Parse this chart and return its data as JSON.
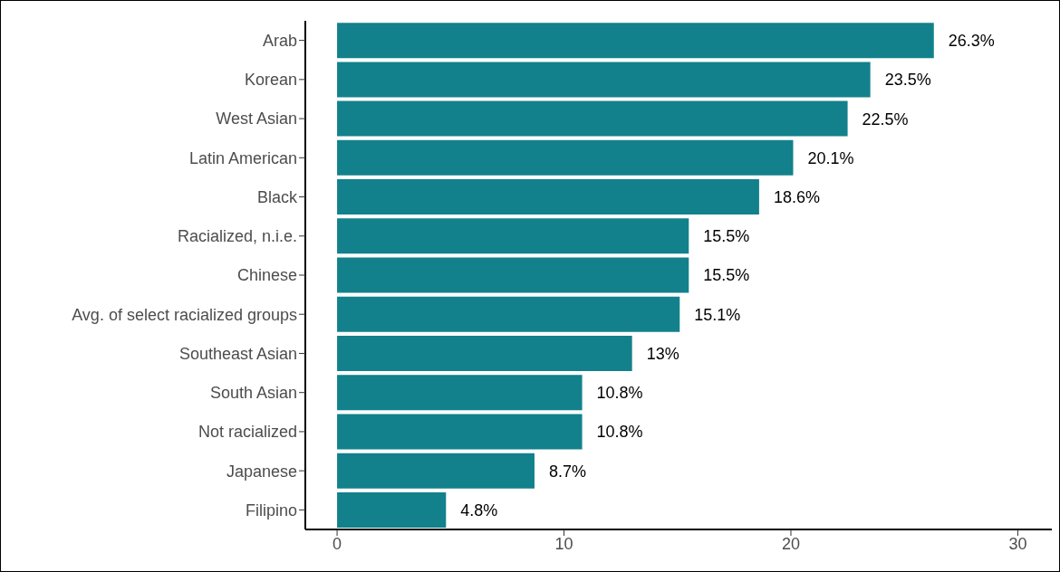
{
  "chart_data": {
    "type": "bar",
    "orientation": "horizontal",
    "categories": [
      "Arab",
      "Korean",
      "West Asian",
      "Latin American",
      "Black",
      "Racialized, n.i.e.",
      "Chinese",
      "Avg. of select racialized groups",
      "Southeast Asian",
      "South Asian",
      "Not racialized",
      "Japanese",
      "Filipino"
    ],
    "values": [
      26.3,
      23.5,
      22.5,
      20.1,
      18.6,
      15.5,
      15.5,
      15.1,
      13,
      10.8,
      10.8,
      8.7,
      4.8
    ],
    "value_labels": [
      "26.3%",
      "23.5%",
      "22.5%",
      "20.1%",
      "18.6%",
      "15.5%",
      "15.5%",
      "15.1%",
      "13%",
      "10.8%",
      "10.8%",
      "8.7%",
      "4.8%"
    ],
    "color": "#12818b",
    "xlim": [
      -1.4,
      31.5
    ],
    "xticks": [
      0,
      10,
      20,
      30
    ],
    "grid": false,
    "legend": false
  }
}
